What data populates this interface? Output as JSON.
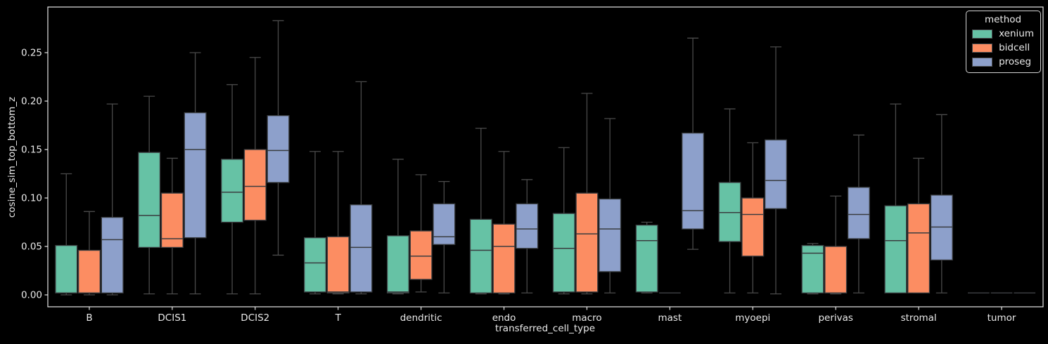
{
  "chart_data": {
    "type": "box",
    "title": "",
    "xlabel": "transferred_cell_type",
    "ylabel": "cosine_sim_top_bottom_z",
    "categories": [
      "B",
      "DCIS1",
      "DCIS2",
      "T",
      "dendritic",
      "endo",
      "macro",
      "mast",
      "myoepi",
      "perivas",
      "stromal",
      "tumor"
    ],
    "yticks": [
      "0.00",
      "0.05",
      "0.10",
      "0.15",
      "0.20",
      "0.25"
    ],
    "ylim": [
      -0.0123,
      0.2971
    ],
    "grid": false,
    "legend": {
      "title": "method",
      "position": "upper right"
    },
    "box_stats_format": "[whisker_low, q1, median, q3, whisker_high]",
    "series": [
      {
        "name": "xenium",
        "color": "#66c2a5",
        "boxes": [
          [
            0.0,
            0.002,
            0.002,
            0.051,
            0.125
          ],
          [
            0.001,
            0.049,
            0.082,
            0.147,
            0.205
          ],
          [
            0.001,
            0.075,
            0.106,
            0.14,
            0.217
          ],
          [
            0.001,
            0.003,
            0.033,
            0.059,
            0.148
          ],
          [
            0.001,
            0.002,
            0.003,
            0.061,
            0.14
          ],
          [
            0.001,
            0.002,
            0.046,
            0.078,
            0.172
          ],
          [
            0.001,
            0.003,
            0.048,
            0.084,
            0.152
          ],
          [
            0.002,
            0.003,
            0.056,
            0.072,
            0.075
          ],
          [
            0.002,
            0.055,
            0.085,
            0.116,
            0.192
          ],
          [
            0.001,
            0.002,
            0.043,
            0.051,
            0.053
          ],
          [
            0.002,
            0.002,
            0.056,
            0.092,
            0.197
          ],
          [
            0.002,
            0.002,
            0.002,
            0.002,
            0.002
          ]
        ]
      },
      {
        "name": "bidcell",
        "color": "#fc8d62",
        "boxes": [
          [
            0.0,
            0.002,
            0.002,
            0.046,
            0.086
          ],
          [
            0.001,
            0.049,
            0.058,
            0.105,
            0.141
          ],
          [
            0.001,
            0.077,
            0.112,
            0.15,
            0.245
          ],
          [
            0.001,
            0.002,
            0.003,
            0.06,
            0.148
          ],
          [
            0.003,
            0.016,
            0.04,
            0.066,
            0.124
          ],
          [
            0.001,
            0.002,
            0.05,
            0.073,
            0.148
          ],
          [
            0.001,
            0.003,
            0.063,
            0.105,
            0.208
          ],
          [
            0.002,
            0.002,
            0.002,
            0.002,
            0.002
          ],
          [
            0.002,
            0.04,
            0.083,
            0.1,
            0.157
          ],
          [
            0.001,
            0.002,
            0.002,
            0.05,
            0.102
          ],
          [
            0.002,
            0.002,
            0.064,
            0.094,
            0.141
          ],
          [
            0.002,
            0.002,
            0.002,
            0.002,
            0.002
          ]
        ]
      },
      {
        "name": "proseg",
        "color": "#8da0cb",
        "boxes": [
          [
            0.0,
            0.002,
            0.057,
            0.08,
            0.197
          ],
          [
            0.001,
            0.059,
            0.15,
            0.188,
            0.25
          ],
          [
            0.041,
            0.116,
            0.149,
            0.185,
            0.283
          ],
          [
            0.001,
            0.003,
            0.049,
            0.093,
            0.22
          ],
          [
            0.002,
            0.052,
            0.06,
            0.094,
            0.117
          ],
          [
            0.002,
            0.048,
            0.068,
            0.094,
            0.119
          ],
          [
            0.002,
            0.024,
            0.068,
            0.099,
            0.182
          ],
          [
            0.047,
            0.068,
            0.087,
            0.167,
            0.265
          ],
          [
            0.001,
            0.089,
            0.118,
            0.16,
            0.256
          ],
          [
            0.002,
            0.058,
            0.083,
            0.111,
            0.165
          ],
          [
            0.002,
            0.036,
            0.07,
            0.103,
            0.186
          ],
          [
            0.002,
            0.002,
            0.002,
            0.002,
            0.002
          ]
        ]
      }
    ],
    "colors": {
      "background": "#000000",
      "text": "#eaeaea",
      "frame": "#e6e6e6",
      "box_edge": "#3a3d40",
      "whisker": "#4a4a4a",
      "median": "#3a3d40"
    }
  }
}
